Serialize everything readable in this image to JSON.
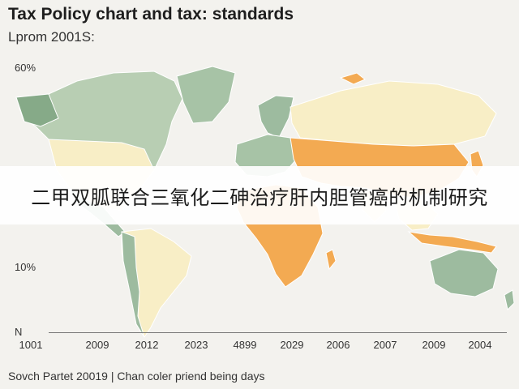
{
  "header": {
    "title": "Tax Policy chart and tax: standards",
    "subtitle": "Lprom 2001S:"
  },
  "y_axis": {
    "labels": [
      "60%",
      "10%",
      "N"
    ]
  },
  "x_axis": {
    "labels": [
      "1001",
      "2009",
      "2012",
      "2023",
      "4899",
      "2029",
      "2006",
      "2007",
      "2009",
      "2004"
    ]
  },
  "banner": {
    "text": "二甲双胍联合三氧化二砷治疗肝内胆管癌的机制研究"
  },
  "footer": {
    "source": "Sovch Partet 20019 | Chan coler priend being days"
  },
  "colors": {
    "background": "#f3f2ee",
    "green": "#9dbb9f",
    "green_dark": "#86aa88",
    "cream": "#f8eec6",
    "orange": "#f3aa52",
    "ocean": "#f3f2ee"
  }
}
